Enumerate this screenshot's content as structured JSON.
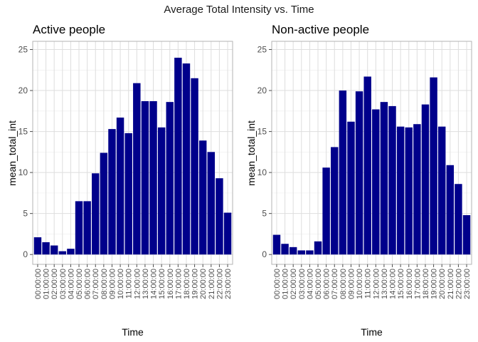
{
  "figure_title": "Average Total Intensity vs. Time",
  "bar_color": "#00008B",
  "chart_data": [
    {
      "type": "bar",
      "title": "Active people",
      "xlabel": "Time",
      "ylabel": "mean_total_int",
      "ylim": [
        -1.2,
        26
      ],
      "yticks": [
        0,
        5,
        10,
        15,
        20,
        25
      ],
      "grid": true,
      "categories": [
        "00:00:00",
        "01:00:00",
        "02:00:00",
        "03:00:00",
        "04:00:00",
        "05:00:00",
        "06:00:00",
        "07:00:00",
        "08:00:00",
        "09:00:00",
        "10:00:00",
        "11:00:00",
        "12:00:00",
        "13:00:00",
        "14:00:00",
        "15:00:00",
        "16:00:00",
        "17:00:00",
        "18:00:00",
        "19:00:00",
        "20:00:00",
        "21:00:00",
        "22:00:00",
        "23:00:00"
      ],
      "values": [
        2.1,
        1.5,
        1.1,
        0.4,
        0.7,
        6.5,
        6.5,
        9.9,
        12.4,
        15.3,
        16.7,
        14.8,
        20.9,
        18.7,
        18.7,
        15.5,
        18.6,
        24.0,
        23.3,
        21.5,
        13.9,
        12.5,
        9.3,
        5.1
      ]
    },
    {
      "type": "bar",
      "title": "Non-active people",
      "xlabel": "Time",
      "ylabel": "mean_total_int",
      "ylim": [
        -1.2,
        26
      ],
      "yticks": [
        0,
        5,
        10,
        15,
        20,
        25
      ],
      "grid": true,
      "categories": [
        "00:00:00",
        "01:00:00",
        "02:00:00",
        "03:00:00",
        "04:00:00",
        "05:00:00",
        "06:00:00",
        "07:00:00",
        "08:00:00",
        "09:00:00",
        "10:00:00",
        "11:00:00",
        "12:00:00",
        "13:00:00",
        "14:00:00",
        "15:00:00",
        "16:00:00",
        "17:00:00",
        "18:00:00",
        "19:00:00",
        "20:00:00",
        "21:00:00",
        "22:00:00",
        "23:00:00"
      ],
      "values": [
        2.4,
        1.3,
        0.9,
        0.5,
        0.5,
        1.6,
        10.6,
        13.1,
        20.0,
        16.2,
        19.9,
        21.7,
        17.7,
        18.6,
        18.1,
        15.6,
        15.5,
        15.9,
        18.3,
        21.6,
        15.6,
        10.9,
        8.6,
        4.8
      ]
    }
  ]
}
